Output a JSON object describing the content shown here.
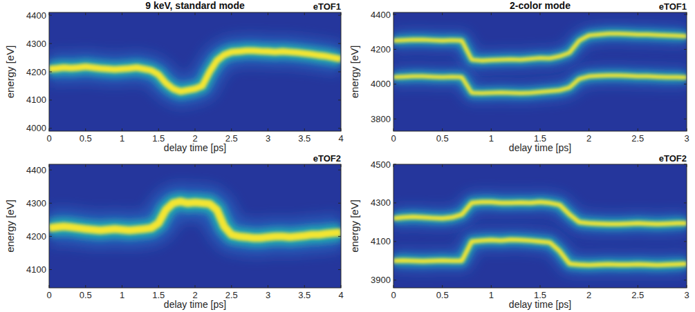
{
  "chart_data": [
    {
      "type": "line",
      "title": "9 keV, standard mode",
      "label": "eTOF1",
      "x_label": "delay time [ps]",
      "y_label": "energy [eV]",
      "grid": false,
      "x": [
        0,
        0.1,
        0.2,
        0.3,
        0.4,
        0.5,
        0.6,
        0.7,
        0.8,
        0.9,
        1,
        1.1,
        1.2,
        1.3,
        1.4,
        1.5,
        1.6,
        1.7,
        1.8,
        1.9,
        2,
        2.1,
        2.2,
        2.3,
        2.4,
        2.5,
        2.6,
        2.7,
        2.8,
        2.9,
        3,
        3.1,
        3.2,
        3.3,
        3.4,
        3.5,
        3.6,
        3.7,
        3.8,
        3.9,
        4
      ],
      "series": [
        {
          "color": "#f3e531",
          "values": [
            4210,
            4212,
            4215,
            4213,
            4215,
            4218,
            4215,
            4212,
            4210,
            4208,
            4210,
            4212,
            4215,
            4210,
            4205,
            4190,
            4160,
            4140,
            4130,
            4135,
            4140,
            4150,
            4200,
            4240,
            4260,
            4270,
            4272,
            4275,
            4275,
            4273,
            4272,
            4270,
            4272,
            4270,
            4268,
            4265,
            4262,
            4258,
            4255,
            4250,
            4245
          ]
        }
      ],
      "xlim": [
        0,
        4
      ],
      "xticks": [
        0,
        0.5,
        1,
        1.5,
        2,
        2.5,
        3,
        3.5,
        4
      ],
      "ylim": [
        3990,
        4410
      ],
      "yticks": [
        4000,
        4100,
        4200,
        4300,
        4400
      ]
    },
    {
      "type": "line",
      "title": "2-color mode",
      "label": "eTOF1",
      "x_label": "delay time [ps]",
      "y_label": "energy [eV]",
      "grid": false,
      "x": [
        0,
        0.1,
        0.2,
        0.3,
        0.4,
        0.5,
        0.6,
        0.7,
        0.8,
        0.9,
        1,
        1.1,
        1.2,
        1.3,
        1.4,
        1.5,
        1.6,
        1.7,
        1.8,
        1.9,
        2,
        2.1,
        2.2,
        2.3,
        2.4,
        2.5,
        2.6,
        2.7,
        2.8,
        2.9,
        3
      ],
      "series": [
        {
          "color": "#f3e531",
          "values": [
            4250,
            4252,
            4255,
            4255,
            4252,
            4250,
            4252,
            4250,
            4140,
            4135,
            4138,
            4140,
            4142,
            4140,
            4145,
            4150,
            4148,
            4160,
            4180,
            4250,
            4280,
            4285,
            4290,
            4290,
            4288,
            4285,
            4285,
            4282,
            4280,
            4278,
            4275
          ]
        },
        {
          "color": "#f3e531",
          "values": [
            4040,
            4042,
            4045,
            4045,
            4042,
            4040,
            4042,
            4040,
            3950,
            3948,
            3950,
            3952,
            3950,
            3948,
            3950,
            3955,
            3960,
            3965,
            3980,
            4030,
            4045,
            4048,
            4050,
            4050,
            4048,
            4045,
            4045,
            4042,
            4040,
            4040,
            4038
          ]
        }
      ],
      "xlim": [
        0,
        3
      ],
      "xticks": [
        0,
        0.5,
        1,
        1.5,
        2,
        2.5,
        3
      ],
      "ylim": [
        3730,
        4412
      ],
      "yticks": [
        3800,
        4000,
        4200,
        4400
      ]
    },
    {
      "type": "line",
      "label": "eTOF2",
      "x_label": "delay time [ps]",
      "y_label": "energy [eV]",
      "grid": false,
      "x": [
        0,
        0.1,
        0.2,
        0.3,
        0.4,
        0.5,
        0.6,
        0.7,
        0.8,
        0.9,
        1,
        1.1,
        1.2,
        1.3,
        1.4,
        1.5,
        1.6,
        1.7,
        1.8,
        1.9,
        2,
        2.1,
        2.2,
        2.3,
        2.4,
        2.5,
        2.6,
        2.7,
        2.8,
        2.9,
        3,
        3.1,
        3.2,
        3.3,
        3.4,
        3.5,
        3.6,
        3.7,
        3.8,
        3.9,
        4
      ],
      "series": [
        {
          "color": "#f3e531",
          "values": [
            4225,
            4228,
            4230,
            4228,
            4225,
            4222,
            4220,
            4218,
            4220,
            4222,
            4220,
            4218,
            4220,
            4222,
            4225,
            4240,
            4280,
            4300,
            4305,
            4300,
            4302,
            4300,
            4298,
            4280,
            4230,
            4205,
            4200,
            4198,
            4195,
            4195,
            4198,
            4200,
            4200,
            4198,
            4200,
            4202,
            4205,
            4205,
            4208,
            4210,
            4212
          ]
        }
      ],
      "xlim": [
        0,
        4
      ],
      "xticks": [
        0,
        0.5,
        1,
        1.5,
        2,
        2.5,
        3,
        3.5,
        4
      ],
      "ylim": [
        4045,
        4417
      ],
      "yticks": [
        4100,
        4200,
        4300,
        4400
      ]
    },
    {
      "type": "line",
      "label": "eTOF2",
      "x_label": "delay time [ps]",
      "y_label": "energy [eV]",
      "grid": false,
      "x": [
        0,
        0.1,
        0.2,
        0.3,
        0.4,
        0.5,
        0.6,
        0.7,
        0.8,
        0.9,
        1,
        1.1,
        1.2,
        1.3,
        1.4,
        1.5,
        1.6,
        1.7,
        1.8,
        1.9,
        2,
        2.1,
        2.2,
        2.3,
        2.4,
        2.5,
        2.6,
        2.7,
        2.8,
        2.9,
        3
      ],
      "series": [
        {
          "color": "#f3e531",
          "values": [
            4220,
            4225,
            4228,
            4225,
            4222,
            4220,
            4225,
            4240,
            4300,
            4305,
            4305,
            4300,
            4300,
            4302,
            4300,
            4305,
            4300,
            4290,
            4240,
            4200,
            4195,
            4192,
            4190,
            4190,
            4192,
            4195,
            4192,
            4190,
            4192,
            4195,
            4195
          ]
        },
        {
          "color": "#f3e531",
          "values": [
            4000,
            4002,
            4000,
            3998,
            4000,
            4002,
            4000,
            4000,
            4100,
            4105,
            4108,
            4105,
            4110,
            4108,
            4105,
            4100,
            4095,
            4050,
            3985,
            3980,
            3978,
            3980,
            3982,
            3980,
            3980,
            3982,
            3980,
            3978,
            3980,
            3982,
            3985
          ]
        }
      ],
      "xlim": [
        0,
        3
      ],
      "xticks": [
        0,
        0.5,
        1,
        1.5,
        2,
        2.5,
        3
      ],
      "ylim": [
        3860,
        4500
      ],
      "yticks": [
        3900,
        4100,
        4300,
        4500
      ]
    }
  ]
}
